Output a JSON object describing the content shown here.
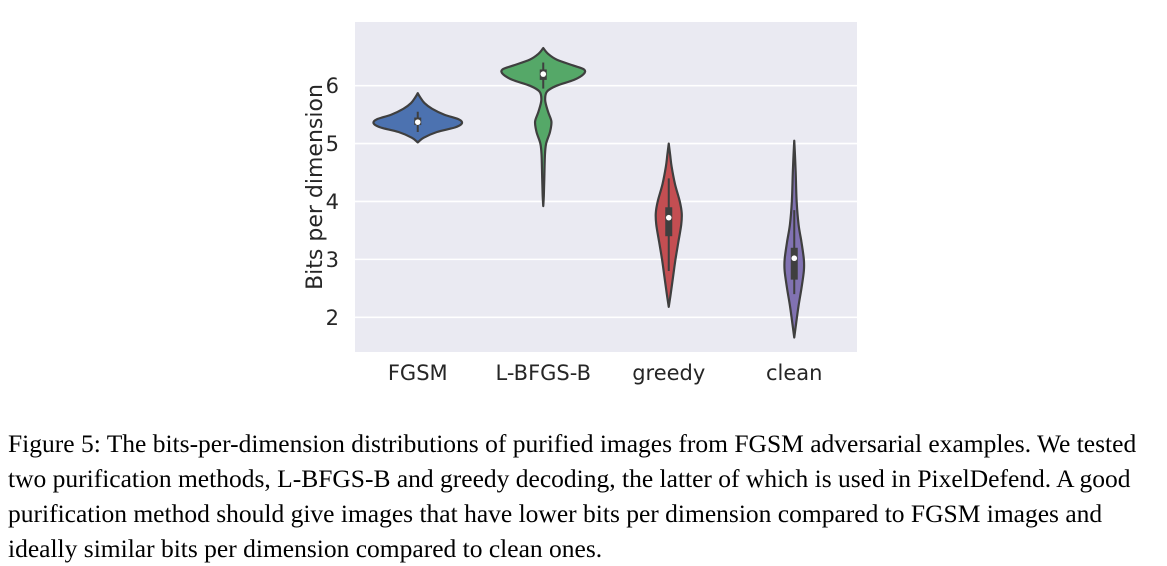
{
  "chart_data": {
    "type": "violin",
    "ylabel": "Bits per dimension",
    "xlabel": "",
    "ylim": [
      1.4,
      7.1
    ],
    "yticks": [
      2,
      3,
      4,
      5,
      6
    ],
    "grid": true,
    "categories": [
      "FGSM",
      "L-BFGS-B",
      "greedy",
      "clean"
    ],
    "series": [
      {
        "category": "FGSM",
        "color": "#4c72b0",
        "range": [
          5.02,
          5.87
        ],
        "q1": 5.32,
        "median": 5.37,
        "q3": 5.45,
        "whisker_low": 5.2,
        "whisker_high": 5.55,
        "profile": [
          [
            5.02,
            0
          ],
          [
            5.1,
            0.12
          ],
          [
            5.2,
            0.4
          ],
          [
            5.28,
            0.78
          ],
          [
            5.35,
            0.92
          ],
          [
            5.42,
            0.85
          ],
          [
            5.5,
            0.55
          ],
          [
            5.6,
            0.3
          ],
          [
            5.7,
            0.14
          ],
          [
            5.8,
            0.05
          ],
          [
            5.87,
            0
          ]
        ]
      },
      {
        "category": "L-BFGS-B",
        "color": "#55a868",
        "range": [
          3.92,
          6.65
        ],
        "q1": 6.1,
        "median": 6.2,
        "q3": 6.28,
        "whisker_low": 5.95,
        "whisker_high": 6.4,
        "profile": [
          [
            3.92,
            0
          ],
          [
            4.1,
            0.012
          ],
          [
            4.4,
            0.022
          ],
          [
            4.8,
            0.035
          ],
          [
            5.0,
            0.06
          ],
          [
            5.2,
            0.14
          ],
          [
            5.38,
            0.17
          ],
          [
            5.55,
            0.1
          ],
          [
            5.75,
            0.04
          ],
          [
            5.9,
            0.08
          ],
          [
            6.0,
            0.28
          ],
          [
            6.1,
            0.64
          ],
          [
            6.2,
            0.84
          ],
          [
            6.28,
            0.85
          ],
          [
            6.35,
            0.62
          ],
          [
            6.45,
            0.28
          ],
          [
            6.55,
            0.1
          ],
          [
            6.65,
            0
          ]
        ]
      },
      {
        "category": "greedy",
        "color": "#c44e52",
        "range": [
          2.18,
          5.0
        ],
        "q1": 3.4,
        "median": 3.72,
        "q3": 3.9,
        "whisker_low": 2.8,
        "whisker_high": 4.4,
        "profile": [
          [
            2.18,
            0
          ],
          [
            2.4,
            0.04
          ],
          [
            2.7,
            0.09
          ],
          [
            3.0,
            0.14
          ],
          [
            3.3,
            0.2
          ],
          [
            3.6,
            0.26
          ],
          [
            3.8,
            0.27
          ],
          [
            4.0,
            0.23
          ],
          [
            4.3,
            0.13
          ],
          [
            4.6,
            0.06
          ],
          [
            4.8,
            0.03
          ],
          [
            5.0,
            0
          ]
        ]
      },
      {
        "category": "clean",
        "color": "#8172b2",
        "range": [
          1.65,
          5.05
        ],
        "q1": 2.65,
        "median": 3.02,
        "q3": 3.2,
        "whisker_low": 2.4,
        "whisker_high": 3.85,
        "profile": [
          [
            1.65,
            0
          ],
          [
            1.9,
            0.04
          ],
          [
            2.2,
            0.09
          ],
          [
            2.5,
            0.15
          ],
          [
            2.8,
            0.2
          ],
          [
            3.0,
            0.2
          ],
          [
            3.3,
            0.15
          ],
          [
            3.6,
            0.09
          ],
          [
            4.0,
            0.05
          ],
          [
            4.5,
            0.03
          ],
          [
            4.8,
            0.015
          ],
          [
            5.05,
            0
          ]
        ]
      }
    ]
  },
  "caption": {
    "text": "Figure 5: The bits-per-dimension distributions of purified images from FGSM adversarial examples. We tested two purification methods, L-BFGS-B and greedy decoding, the latter of which is used in PixelDefend. A good purification method should give images that have lower bits per dimension compared to FGSM images and ideally similar bits per dimension compared to clean ones."
  }
}
